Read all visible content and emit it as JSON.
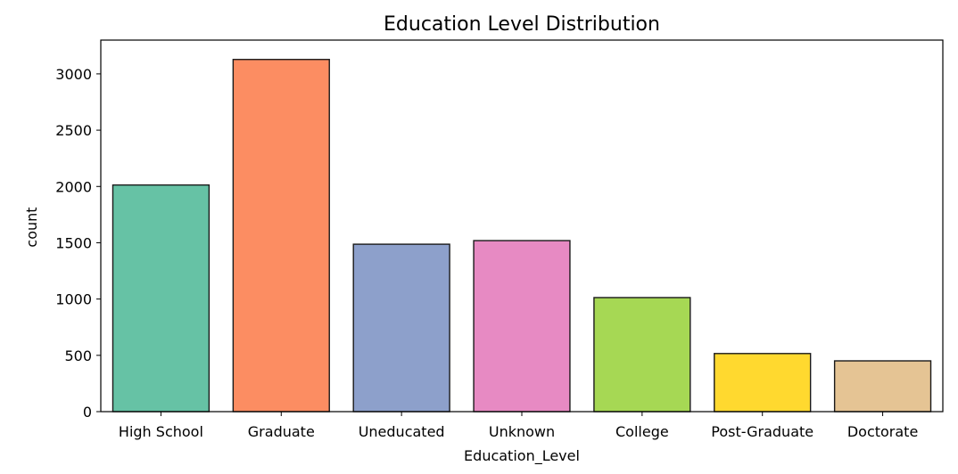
{
  "chart_data": {
    "type": "bar",
    "title": "Education Level Distribution",
    "xlabel": "Education_Level",
    "ylabel": "count",
    "categories": [
      "High School",
      "Graduate",
      "Uneducated",
      "Unknown",
      "College",
      "Post-Graduate",
      "Doctorate"
    ],
    "values": [
      2013,
      3128,
      1487,
      1519,
      1013,
      516,
      451
    ],
    "colors": [
      "#66c2a5",
      "#fc8d62",
      "#8da0cb",
      "#e78ac3",
      "#a6d854",
      "#ffd92f",
      "#e5c494"
    ],
    "ylim": [
      0,
      3300
    ],
    "yticks": [
      0,
      500,
      1000,
      1500,
      2000,
      2500,
      3000
    ],
    "grid": false,
    "legend": "none"
  }
}
